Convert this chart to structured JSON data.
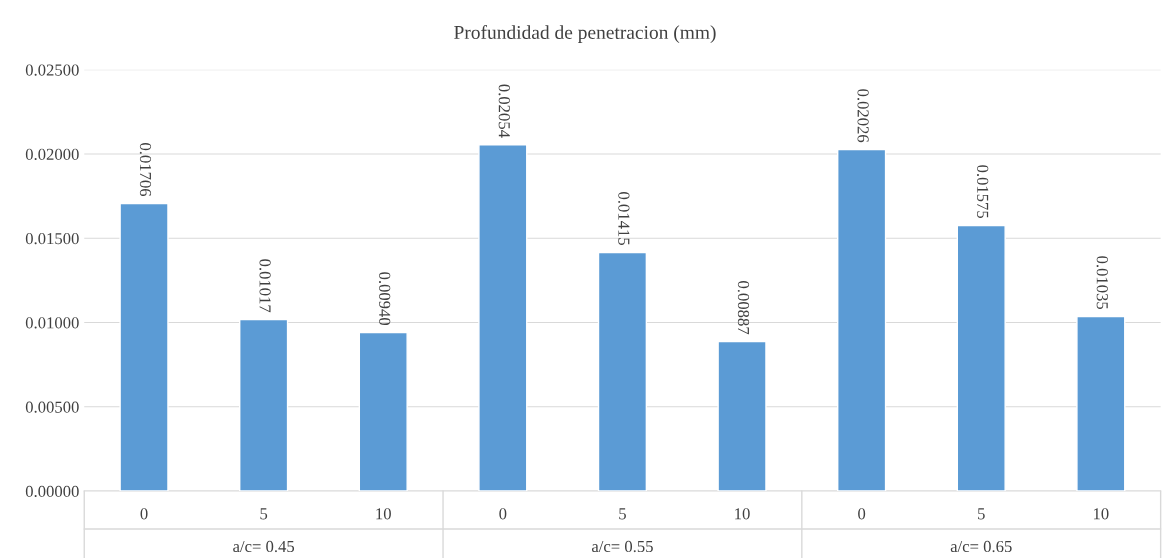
{
  "chart_data": {
    "type": "bar",
    "title": "Profundidad de penetracion (mm)",
    "categories": [
      "0",
      "5",
      "10",
      "0",
      "5",
      "10",
      "0",
      "5",
      "10"
    ],
    "values": [
      0.01706,
      0.01017,
      0.0094,
      0.02054,
      0.01415,
      0.00887,
      0.02026,
      0.01575,
      0.01035
    ],
    "value_labels": [
      "0.01706",
      "0.01017",
      "0.00940",
      "0.02054",
      "0.01415",
      "0.00887",
      "0.02026",
      "0.01575",
      "0.01035"
    ],
    "color": "#5b9bd5",
    "ylim": [
      0,
      0.025
    ],
    "yticks": [
      {
        "value": 0,
        "label": "0.00000"
      },
      {
        "value": 0.005,
        "label": "0.00500"
      },
      {
        "value": 0.01,
        "label": "0.01000"
      },
      {
        "value": 0.015,
        "label": "0.01500"
      },
      {
        "value": 0.02,
        "label": "0.02000"
      },
      {
        "value": 0.025,
        "label": "0.02500"
      }
    ],
    "grid": "y",
    "annotations": [
      "a/c= 0.45",
      "a/c= 0.55",
      "a/c= 0.65"
    ]
  }
}
